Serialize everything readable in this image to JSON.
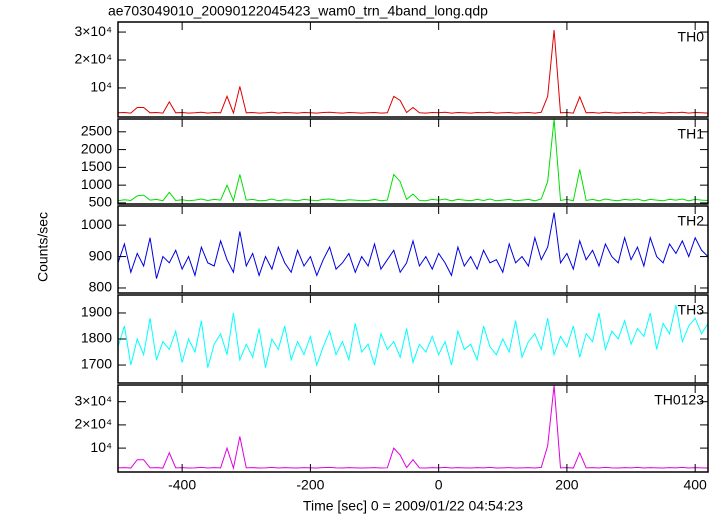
{
  "title": "ae703049010_20090122045423_wam0_trn_4band_long.qdp",
  "y_label": "Counts/sec",
  "x_label": "Time [sec] 0 = 2009/01/22 04:54:23",
  "xlim": [
    -500,
    420
  ],
  "xticks": [
    -400,
    -200,
    0,
    200,
    400
  ],
  "x": [
    -500,
    -490,
    -480,
    -470,
    -460,
    -450,
    -440,
    -430,
    -420,
    -410,
    -400,
    -390,
    -380,
    -370,
    -360,
    -350,
    -340,
    -330,
    -320,
    -310,
    -300,
    -290,
    -280,
    -270,
    -260,
    -250,
    -240,
    -230,
    -220,
    -210,
    -200,
    -190,
    -180,
    -170,
    -160,
    -150,
    -140,
    -130,
    -120,
    -110,
    -100,
    -90,
    -80,
    -70,
    -60,
    -50,
    -40,
    -30,
    -20,
    -10,
    0,
    10,
    20,
    30,
    40,
    50,
    60,
    70,
    80,
    90,
    100,
    110,
    120,
    130,
    140,
    150,
    160,
    170,
    180,
    190,
    200,
    210,
    220,
    230,
    240,
    250,
    260,
    270,
    280,
    290,
    300,
    310,
    320,
    330,
    340,
    350,
    360,
    370,
    380,
    390,
    400,
    410,
    420
  ],
  "chart_data": [
    {
      "type": "line",
      "label": "TH0",
      "color": "#e00000",
      "ylim": [
        -400,
        33600
      ],
      "yticks": [
        {
          "value": 10000,
          "label": "10⁴"
        },
        {
          "value": 20000,
          "label": "2×10⁴"
        },
        {
          "value": 30000,
          "label": "3×10⁴"
        }
      ],
      "values": [
        1100,
        1200,
        1000,
        3000,
        3000,
        1100,
        1200,
        1000,
        5000,
        1100,
        1200,
        1000,
        1100,
        1300,
        1000,
        1200,
        1100,
        7000,
        1000,
        10500,
        1100,
        1200,
        1000,
        1100,
        1300,
        1000,
        1200,
        1100,
        1000,
        1200,
        1100,
        1000,
        1200,
        1300,
        1100,
        1000,
        1200,
        1100,
        1000,
        1100,
        1200,
        1000,
        1100,
        7000,
        5500,
        1200,
        3000,
        1100,
        1000,
        1200,
        1100,
        1300,
        1000,
        1200,
        1100,
        1000,
        1200,
        1100,
        1300,
        1000,
        1100,
        1200,
        1000,
        1100,
        1200,
        1000,
        1300,
        7000,
        30700,
        1100,
        1200,
        1000,
        6800,
        1100,
        1200,
        1000,
        1300,
        1100,
        1000,
        1200,
        1100,
        1300,
        1000,
        1200,
        1100,
        1000,
        1200,
        1100,
        1300,
        1000,
        1200,
        1100,
        1000
      ]
    },
    {
      "type": "line",
      "label": "TH1",
      "color": "#00e000",
      "ylim": [
        470,
        2860
      ],
      "yticks": [
        500,
        1000,
        1500,
        2000,
        2500
      ],
      "values": [
        560,
        590,
        570,
        700,
        720,
        580,
        600,
        560,
        800,
        570,
        590,
        560,
        580,
        610,
        570,
        600,
        580,
        1000,
        560,
        1300,
        580,
        600,
        560,
        570,
        610,
        560,
        590,
        580,
        560,
        600,
        580,
        560,
        600,
        610,
        580,
        560,
        590,
        580,
        560,
        570,
        600,
        560,
        580,
        1300,
        1100,
        600,
        750,
        570,
        560,
        600,
        580,
        610,
        560,
        600,
        580,
        560,
        600,
        570,
        610,
        560,
        580,
        600,
        560,
        580,
        600,
        560,
        610,
        1100,
        2860,
        570,
        600,
        560,
        1440,
        570,
        600,
        560,
        610,
        580,
        560,
        600,
        580,
        610,
        560,
        600,
        580,
        560,
        600,
        580,
        610,
        560,
        600,
        580,
        570
      ]
    },
    {
      "type": "line",
      "label": "TH2",
      "color": "#0000e0",
      "ylim": [
        784,
        1061
      ],
      "yticks": [
        800,
        900,
        1000
      ],
      "values": [
        880,
        940,
        850,
        910,
        870,
        960,
        830,
        900,
        880,
        920,
        860,
        900,
        840,
        930,
        880,
        870,
        950,
        890,
        850,
        980,
        870,
        910,
        840,
        900,
        860,
        930,
        880,
        850,
        920,
        870,
        900,
        840,
        890,
        930,
        860,
        880,
        910,
        850,
        900,
        870,
        940,
        860,
        890,
        920,
        850,
        880,
        950,
        870,
        900,
        860,
        910,
        880,
        840,
        930,
        870,
        900,
        860,
        920,
        880,
        890,
        850,
        940,
        880,
        900,
        870,
        960,
        890,
        930,
        1040,
        880,
        910,
        860,
        950,
        890,
        920,
        870,
        940,
        900,
        880,
        960,
        890,
        930,
        870,
        960,
        900,
        880,
        940,
        910,
        950,
        900,
        960,
        920,
        900
      ]
    },
    {
      "type": "line",
      "label": "TH3",
      "color": "#00ffff",
      "ylim": [
        1631,
        1969
      ],
      "yticks": [
        1700,
        1800,
        1900
      ],
      "values": [
        1770,
        1850,
        1700,
        1800,
        1740,
        1880,
        1720,
        1790,
        1760,
        1830,
        1710,
        1800,
        1750,
        1870,
        1690,
        1780,
        1820,
        1740,
        1900,
        1720,
        1780,
        1730,
        1840,
        1690,
        1800,
        1760,
        1850,
        1720,
        1790,
        1740,
        1810,
        1700,
        1770,
        1830,
        1740,
        1790,
        1720,
        1860,
        1750,
        1780,
        1700,
        1820,
        1760,
        1790,
        1730,
        1840,
        1710,
        1780,
        1750,
        1810,
        1740,
        1790,
        1700,
        1830,
        1760,
        1780,
        1720,
        1850,
        1770,
        1740,
        1800,
        1750,
        1870,
        1730,
        1790,
        1820,
        1760,
        1880,
        1740,
        1810,
        1770,
        1850,
        1730,
        1820,
        1790,
        1900,
        1760,
        1830,
        1800,
        1870,
        1780,
        1840,
        1810,
        1900,
        1760,
        1860,
        1820,
        1930,
        1790,
        1850,
        1880,
        1820,
        1860
      ]
    },
    {
      "type": "line",
      "label": "TH0123",
      "color": "#e000e0",
      "ylim": [
        -300,
        37200
      ],
      "yticks": [
        {
          "value": 10000,
          "label": "10⁴"
        },
        {
          "value": 20000,
          "label": "2×10⁴"
        },
        {
          "value": 30000,
          "label": "3×10⁴"
        }
      ],
      "values": [
        1500,
        1600,
        1400,
        5000,
        5000,
        1500,
        1600,
        1400,
        8000,
        1500,
        1600,
        1400,
        1500,
        1700,
        1400,
        1600,
        1500,
        10000,
        1400,
        15000,
        1500,
        1600,
        1400,
        1500,
        1700,
        1400,
        1600,
        1500,
        1400,
        1600,
        1500,
        1400,
        1600,
        1700,
        1500,
        1400,
        1600,
        1500,
        1400,
        1500,
        1600,
        1400,
        1500,
        10000,
        7000,
        1600,
        5000,
        1500,
        1400,
        1600,
        1500,
        1700,
        1400,
        1600,
        1500,
        1400,
        1600,
        1500,
        1700,
        1400,
        1500,
        1600,
        1400,
        1500,
        1600,
        1400,
        1700,
        11000,
        37000,
        1500,
        1600,
        1400,
        8000,
        1500,
        1600,
        1400,
        1700,
        1500,
        1400,
        1600,
        1500,
        1700,
        1400,
        1600,
        1500,
        1400,
        1600,
        1500,
        1700,
        1400,
        1600,
        1500,
        1400
      ]
    }
  ]
}
